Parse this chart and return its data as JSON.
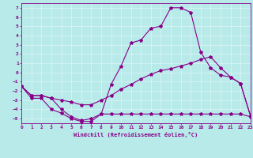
{
  "xlabel": "Windchill (Refroidissement éolien,°C)",
  "xlim": [
    0,
    23
  ],
  "ylim": [
    -5.5,
    7.5
  ],
  "xticks": [
    0,
    1,
    2,
    3,
    4,
    5,
    6,
    7,
    8,
    9,
    10,
    11,
    12,
    13,
    14,
    15,
    16,
    17,
    18,
    19,
    20,
    21,
    22,
    23
  ],
  "yticks": [
    -5,
    -4,
    -3,
    -2,
    -1,
    0,
    1,
    2,
    3,
    4,
    5,
    6,
    7
  ],
  "bg_color": "#b8eaea",
  "line_color": "#880088",
  "grid_color": "#d8f4f4",
  "line1_x": [
    0,
    1,
    2,
    3,
    4,
    5,
    6,
    7,
    8,
    9,
    10,
    11,
    12,
    13,
    14,
    15,
    16,
    17,
    18,
    19,
    20,
    21,
    22,
    23
  ],
  "line1_y": [
    -1.5,
    -2.8,
    -2.8,
    -4.0,
    -4.4,
    -5.0,
    -5.3,
    -5.3,
    -4.5,
    -1.3,
    0.7,
    3.2,
    3.5,
    4.8,
    5.0,
    7.0,
    7.0,
    6.5,
    2.2,
    0.5,
    -0.3,
    -0.5,
    -1.2,
    -4.7
  ],
  "line2_x": [
    0,
    1,
    2,
    3,
    4,
    5,
    6,
    7,
    8,
    9,
    10,
    11,
    12,
    13,
    14,
    15,
    16,
    17,
    18,
    19,
    20,
    21,
    22,
    23
  ],
  "line2_y": [
    -1.5,
    -2.5,
    -2.5,
    -2.8,
    -4.0,
    -4.8,
    -5.2,
    -5.0,
    -4.5,
    -4.5,
    -4.5,
    -4.5,
    -4.5,
    -4.5,
    -4.5,
    -4.5,
    -4.5,
    -4.5,
    -4.5,
    -4.5,
    -4.5,
    -4.5,
    -4.5,
    -4.8
  ],
  "line3_x": [
    0,
    1,
    2,
    3,
    4,
    5,
    6,
    7,
    8,
    9,
    10,
    11,
    12,
    13,
    14,
    15,
    16,
    17,
    18,
    19,
    20,
    21,
    22,
    23
  ],
  "line3_y": [
    -1.5,
    -2.5,
    -2.5,
    -2.8,
    -3.0,
    -3.2,
    -3.5,
    -3.5,
    -3.0,
    -2.5,
    -1.8,
    -1.3,
    -0.7,
    -0.2,
    0.2,
    0.4,
    0.7,
    1.0,
    1.4,
    1.7,
    0.5,
    -0.5,
    -1.2,
    -4.7
  ]
}
